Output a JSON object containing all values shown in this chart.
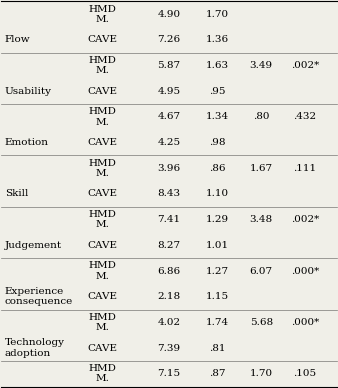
{
  "rows": [
    {
      "category": "",
      "system": "HMD\nM.",
      "mean": "4.90",
      "std": "1.70",
      "f": "",
      "p": ""
    },
    {
      "category": "Flow",
      "system": "CAVE",
      "mean": "7.26",
      "std": "1.36",
      "f": "",
      "p": ""
    },
    {
      "category": "",
      "system": "HMD\nM.",
      "mean": "5.87",
      "std": "1.63",
      "f": "3.49",
      "p": ".002*"
    },
    {
      "category": "Usability",
      "system": "CAVE",
      "mean": "4.95",
      "std": ".95",
      "f": "",
      "p": ""
    },
    {
      "category": "",
      "system": "HMD\nM.",
      "mean": "4.67",
      "std": "1.34",
      "f": ".80",
      "p": ".432"
    },
    {
      "category": "Emotion",
      "system": "CAVE",
      "mean": "4.25",
      "std": ".98",
      "f": "",
      "p": ""
    },
    {
      "category": "",
      "system": "HMD\nM.",
      "mean": "3.96",
      "std": ".86",
      "f": "1.67",
      "p": ".111"
    },
    {
      "category": "Skill",
      "system": "CAVE",
      "mean": "8.43",
      "std": "1.10",
      "f": "",
      "p": ""
    },
    {
      "category": "",
      "system": "HMD\nM.",
      "mean": "7.41",
      "std": "1.29",
      "f": "3.48",
      "p": ".002*"
    },
    {
      "category": "Judgement",
      "system": "CAVE",
      "mean": "8.27",
      "std": "1.01",
      "f": "",
      "p": ""
    },
    {
      "category": "",
      "system": "HMD\nM.",
      "mean": "6.86",
      "std": "1.27",
      "f": "6.07",
      "p": ".000*"
    },
    {
      "category": "Experience\nconsequence",
      "system": "CAVE",
      "mean": "2.18",
      "std": "1.15",
      "f": "",
      "p": ""
    },
    {
      "category": "",
      "system": "HMD\nM.",
      "mean": "4.02",
      "std": "1.74",
      "f": "5.68",
      "p": ".000*"
    },
    {
      "category": "Technology\nadoption",
      "system": "CAVE",
      "mean": "7.39",
      "std": ".81",
      "f": "",
      "p": ""
    },
    {
      "category": "",
      "system": "HMD\nM.",
      "mean": "7.15",
      "std": ".87",
      "f": "1.70",
      "p": ".105"
    }
  ],
  "bg_color": "#f0efe8",
  "font_size": 7.5,
  "font_family": "serif",
  "col_cat": 0.01,
  "col_sys": 0.3,
  "col_mean": 0.5,
  "col_std": 0.645,
  "col_f": 0.775,
  "col_p": 0.905,
  "group_line_indices": [
    0,
    2,
    4,
    6,
    8,
    10,
    12,
    14
  ]
}
